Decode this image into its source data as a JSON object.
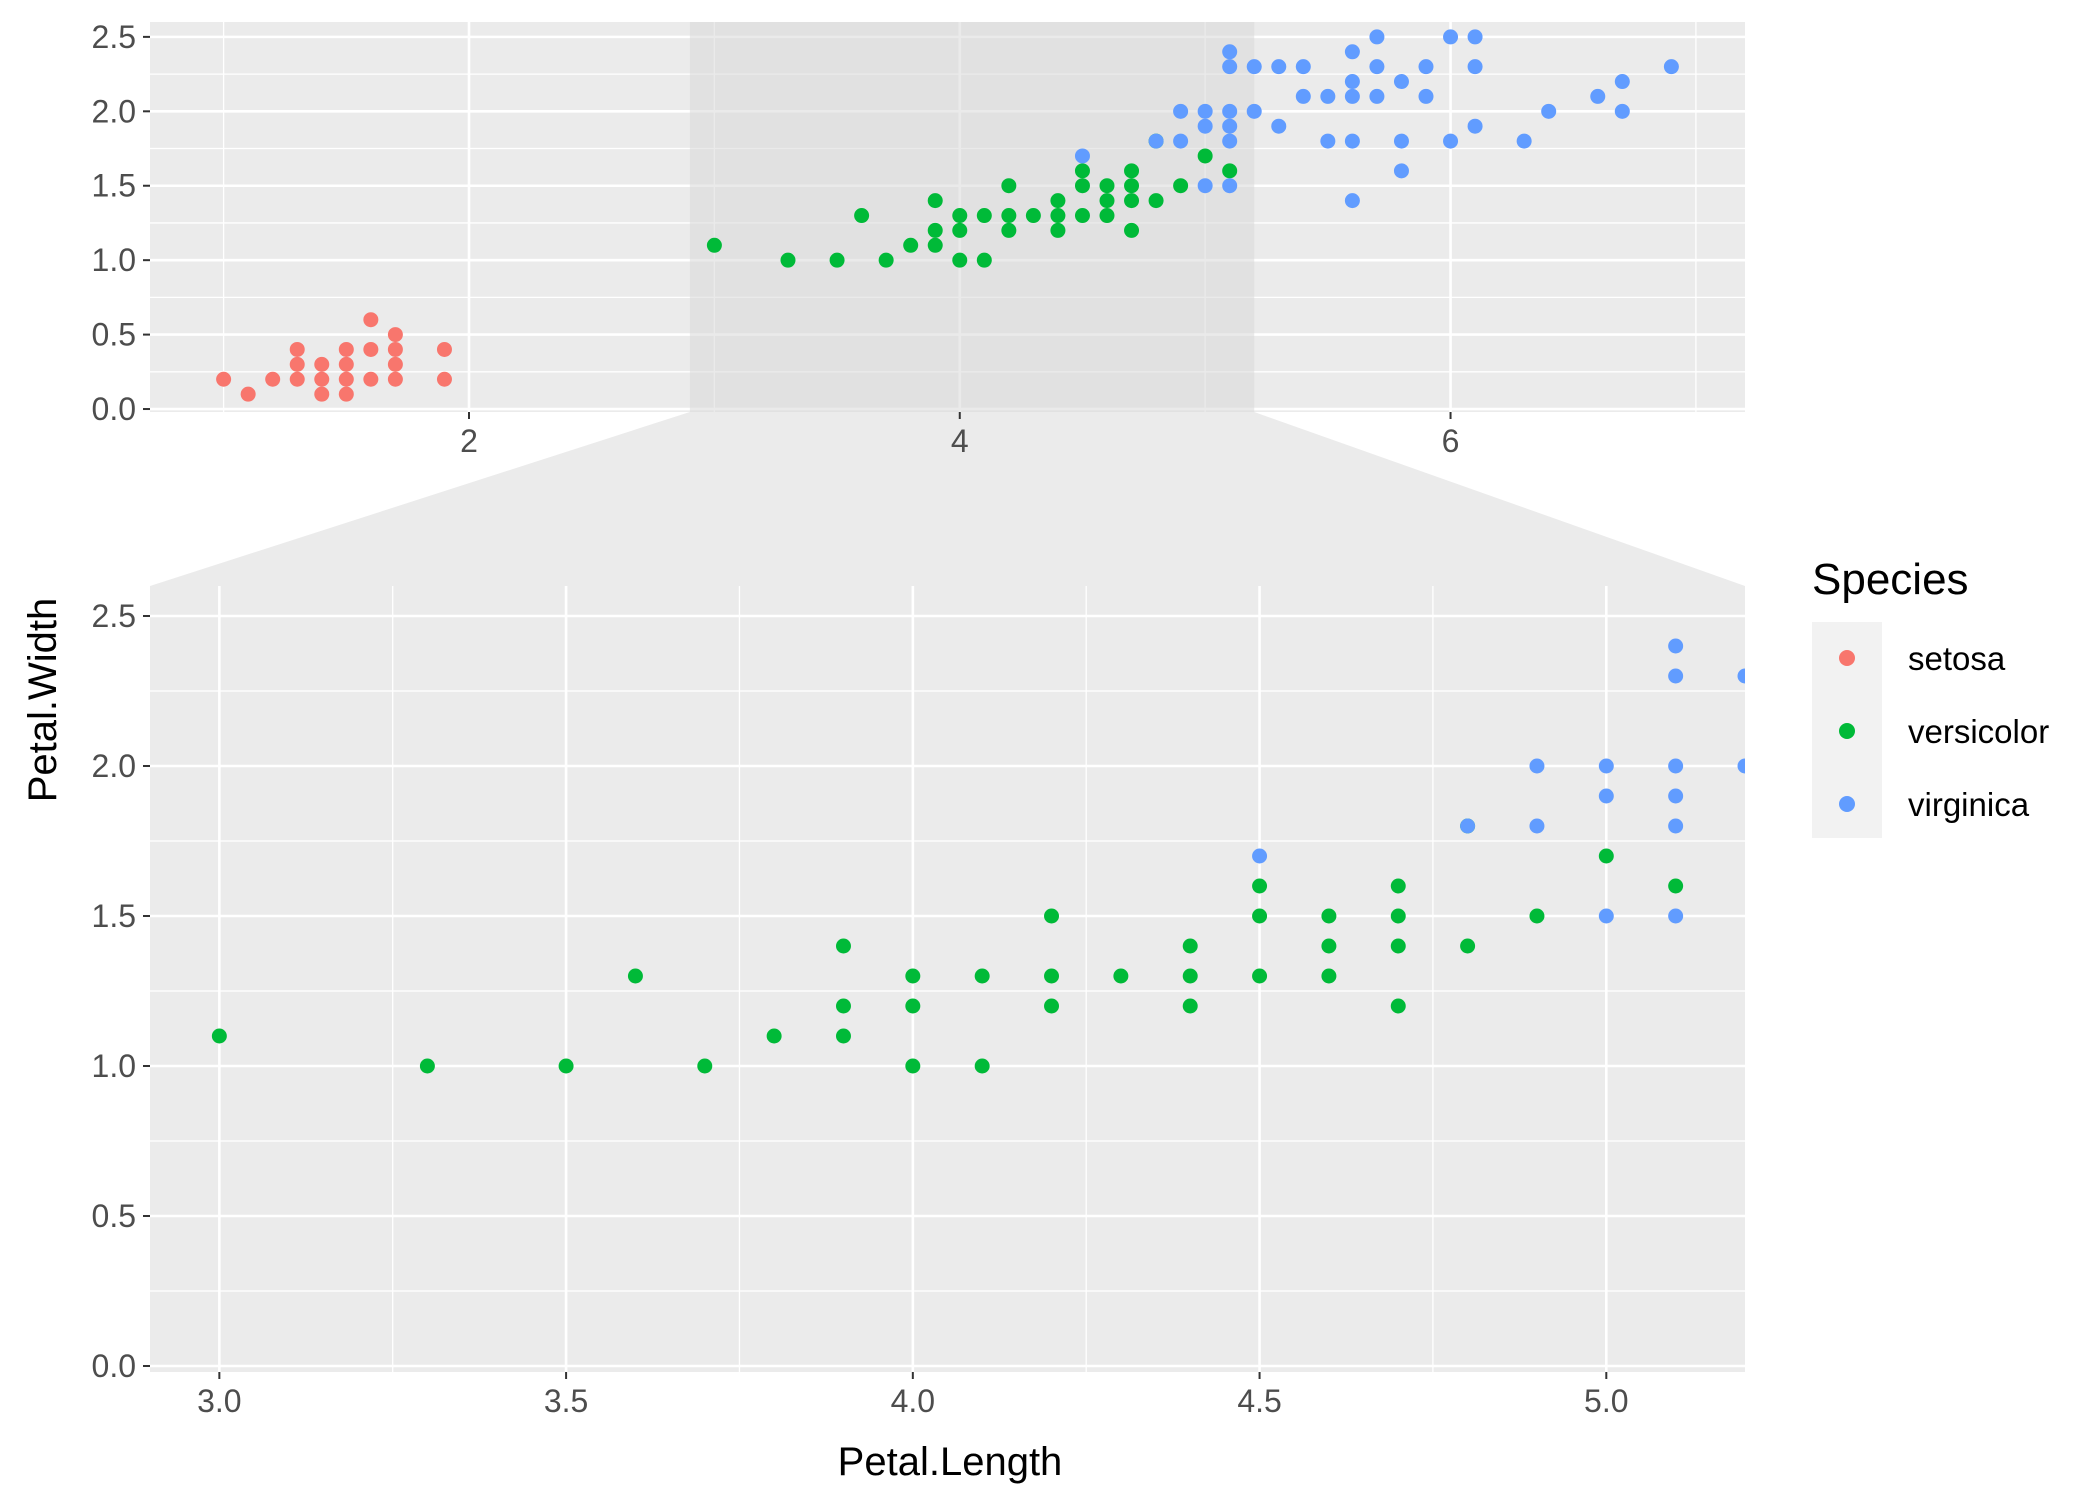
{
  "chart_data": {
    "type": "scatter",
    "xlabel": "Petal.Length",
    "ylabel": "Petal.Width",
    "legend": {
      "title": "Species",
      "position": "right",
      "items": [
        {
          "name": "setosa",
          "color": "#F8766D"
        },
        {
          "name": "versicolor",
          "color": "#00BA38"
        },
        {
          "name": "virginica",
          "color": "#619CFF"
        }
      ]
    },
    "overview": {
      "xlim": [
        0.7,
        7.2
      ],
      "ylim": [
        -0.02,
        2.6
      ],
      "x_ticks": [
        2,
        4,
        6
      ],
      "x_tick_labels": [
        "2",
        "4",
        "6"
      ],
      "y_ticks": [
        0,
        0.5,
        1,
        1.5,
        2,
        2.5
      ],
      "y_tick_labels": [
        "0.0",
        "0.5",
        "1.0",
        "1.5",
        "2.0",
        "2.5"
      ],
      "zoom_band": [
        2.9,
        5.2
      ]
    },
    "zoom": {
      "xlim": [
        2.9,
        5.2
      ],
      "ylim": [
        -0.02,
        2.6
      ],
      "x_ticks": [
        3,
        3.5,
        4,
        4.5,
        5
      ],
      "x_tick_labels": [
        "3.0",
        "3.5",
        "4.0",
        "4.5",
        "5.0"
      ],
      "y_ticks": [
        0,
        0.5,
        1,
        1.5,
        2,
        2.5
      ],
      "y_tick_labels": [
        "0.0",
        "0.5",
        "1.0",
        "1.5",
        "2.0",
        "2.5"
      ]
    },
    "series": [
      {
        "name": "setosa",
        "color": "#F8766D",
        "points": [
          [
            1,
            0.2
          ],
          [
            1.1,
            0.1
          ],
          [
            1.2,
            0.2
          ],
          [
            1.3,
            0.2
          ],
          [
            1.3,
            0.3
          ],
          [
            1.3,
            0.4
          ],
          [
            1.4,
            0.1
          ],
          [
            1.4,
            0.2
          ],
          [
            1.4,
            0.3
          ],
          [
            1.5,
            0.1
          ],
          [
            1.5,
            0.2
          ],
          [
            1.5,
            0.3
          ],
          [
            1.5,
            0.4
          ],
          [
            1.6,
            0.2
          ],
          [
            1.6,
            0.4
          ],
          [
            1.6,
            0.6
          ],
          [
            1.7,
            0.2
          ],
          [
            1.7,
            0.3
          ],
          [
            1.7,
            0.4
          ],
          [
            1.7,
            0.5
          ],
          [
            1.9,
            0.2
          ],
          [
            1.9,
            0.4
          ]
        ]
      },
      {
        "name": "versicolor",
        "color": "#00BA38",
        "points": [
          [
            3,
            1.1
          ],
          [
            3.3,
            1
          ],
          [
            3.5,
            1
          ],
          [
            3.6,
            1.3
          ],
          [
            3.7,
            1
          ],
          [
            3.8,
            1.1
          ],
          [
            3.9,
            1.1
          ],
          [
            3.9,
            1.2
          ],
          [
            3.9,
            1.4
          ],
          [
            4,
            1
          ],
          [
            4,
            1.2
          ],
          [
            4,
            1.3
          ],
          [
            4.1,
            1
          ],
          [
            4.1,
            1.3
          ],
          [
            4.2,
            1.2
          ],
          [
            4.2,
            1.3
          ],
          [
            4.2,
            1.5
          ],
          [
            4.3,
            1.3
          ],
          [
            4.4,
            1.2
          ],
          [
            4.4,
            1.3
          ],
          [
            4.4,
            1.4
          ],
          [
            4.5,
            1.3
          ],
          [
            4.5,
            1.5
          ],
          [
            4.5,
            1.6
          ],
          [
            4.6,
            1.3
          ],
          [
            4.6,
            1.4
          ],
          [
            4.6,
            1.5
          ],
          [
            4.7,
            1.2
          ],
          [
            4.7,
            1.4
          ],
          [
            4.7,
            1.5
          ],
          [
            4.7,
            1.6
          ],
          [
            4.8,
            1.4
          ],
          [
            4.8,
            1.8
          ],
          [
            4.9,
            1.5
          ],
          [
            5,
            1.7
          ],
          [
            5.1,
            1.6
          ]
        ]
      },
      {
        "name": "virginica",
        "color": "#619CFF",
        "points": [
          [
            4.5,
            1.7
          ],
          [
            4.8,
            1.8
          ],
          [
            4.9,
            1.8
          ],
          [
            4.9,
            2
          ],
          [
            5,
            1.5
          ],
          [
            5,
            1.9
          ],
          [
            5,
            2
          ],
          [
            5.1,
            1.5
          ],
          [
            5.1,
            1.8
          ],
          [
            5.1,
            1.9
          ],
          [
            5.1,
            2
          ],
          [
            5.1,
            2.3
          ],
          [
            5.1,
            2.4
          ],
          [
            5.2,
            2
          ],
          [
            5.2,
            2.3
          ],
          [
            5.3,
            1.9
          ],
          [
            5.3,
            2.3
          ],
          [
            5.4,
            2.1
          ],
          [
            5.4,
            2.3
          ],
          [
            5.5,
            1.8
          ],
          [
            5.5,
            2.1
          ],
          [
            5.6,
            1.4
          ],
          [
            5.6,
            1.8
          ],
          [
            5.6,
            2.1
          ],
          [
            5.6,
            2.2
          ],
          [
            5.6,
            2.4
          ],
          [
            5.7,
            2.1
          ],
          [
            5.7,
            2.3
          ],
          [
            5.7,
            2.5
          ],
          [
            5.8,
            1.6
          ],
          [
            5.8,
            1.8
          ],
          [
            5.8,
            2.2
          ],
          [
            5.9,
            2.1
          ],
          [
            5.9,
            2.3
          ],
          [
            6,
            1.8
          ],
          [
            6,
            2.5
          ],
          [
            6.1,
            1.9
          ],
          [
            6.1,
            2.3
          ],
          [
            6.1,
            2.5
          ],
          [
            6.3,
            1.8
          ],
          [
            6.4,
            2
          ],
          [
            6.6,
            2.1
          ],
          [
            6.7,
            2
          ],
          [
            6.7,
            2.2
          ],
          [
            6.9,
            2.3
          ]
        ]
      }
    ]
  }
}
